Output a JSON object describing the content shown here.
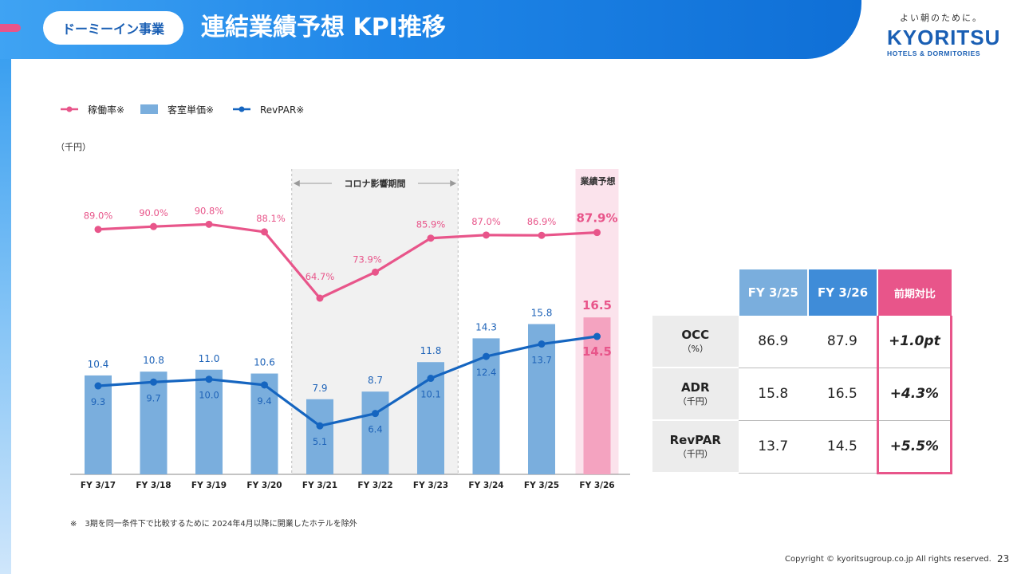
{
  "header": {
    "badge": "ドーミーイン事業",
    "title": "連結業績予想 KPI推移"
  },
  "logo": {
    "tagline": "よい朝のために。",
    "name": "KYORITSU",
    "sub": "HOTELS & DORMITORIES"
  },
  "legend": [
    {
      "label": "稼働率※",
      "color": "#e8558a",
      "type": "line"
    },
    {
      "label": "客室単価※",
      "color": "#7aaedd",
      "type": "bar"
    },
    {
      "label": "RevPAR※",
      "color": "#1565c0",
      "type": "line"
    }
  ],
  "unit_label": "（千円）",
  "covid_label": "コロナ影響期間",
  "forecast_label": "業績予想",
  "chart_data": {
    "type": "bar",
    "categories": [
      "FY 3/17",
      "FY 3/18",
      "FY 3/19",
      "FY 3/20",
      "FY 3/21",
      "FY 3/22",
      "FY 3/23",
      "FY 3/24",
      "FY 3/25",
      "FY 3/26"
    ],
    "series": [
      {
        "name": "稼働率※",
        "type": "line",
        "unit": "%",
        "color": "#e8558a",
        "values": [
          89.0,
          90.0,
          90.8,
          88.1,
          64.7,
          73.9,
          85.9,
          87.0,
          86.9,
          87.9
        ],
        "labels": [
          "89.0%",
          "90.0%",
          "90.8%",
          "88.1%",
          "64.7%",
          "73.9%",
          "85.9%",
          "87.0%",
          "86.9%",
          "87.9%"
        ]
      },
      {
        "name": "客室単価※",
        "type": "bar",
        "unit": "千円",
        "color": "#7aaedd",
        "forecast_color": "#f4a3c0",
        "values": [
          10.4,
          10.8,
          11.0,
          10.6,
          7.9,
          8.7,
          11.8,
          14.3,
          15.8,
          16.5
        ],
        "labels": [
          "10.4",
          "10.8",
          "11.0",
          "10.6",
          "7.9",
          "8.7",
          "11.8",
          "14.3",
          "15.8",
          "16.5"
        ]
      },
      {
        "name": "RevPAR※",
        "type": "line",
        "unit": "千円",
        "color": "#1565c0",
        "values": [
          9.3,
          9.7,
          10.0,
          9.4,
          5.1,
          6.4,
          10.1,
          12.4,
          13.7,
          14.5
        ],
        "labels": [
          "9.3",
          "9.7",
          "10.0",
          "9.4",
          "5.1",
          "6.4",
          "10.1",
          "12.4",
          "13.7",
          "14.5"
        ]
      }
    ],
    "covid_period": [
      "FY 3/21",
      "FY 3/23"
    ],
    "forecast_category": "FY 3/26"
  },
  "table": {
    "headers": [
      "FY 3/25",
      "FY 3/26",
      "前期対比"
    ],
    "rows": [
      {
        "label": "OCC",
        "unit": "（%）",
        "v1": "86.9",
        "v2": "87.9",
        "diff": "+1.0pt"
      },
      {
        "label": "ADR",
        "unit": "（千円）",
        "v1": "15.8",
        "v2": "16.5",
        "diff": "+4.3%"
      },
      {
        "label": "RevPAR",
        "unit": "（千円）",
        "v1": "13.7",
        "v2": "14.5",
        "diff": "+5.5%"
      }
    ]
  },
  "footnote": "※　3期を同一条件下で比較するために 2024年4月以降に開業したホテルを除外",
  "copyright": "Copyright © kyoritsugroup.co.jp All rights reserved.",
  "page_number": "23"
}
